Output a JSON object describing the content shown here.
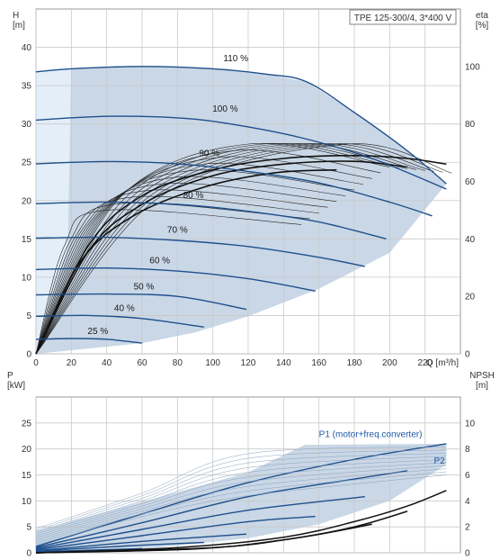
{
  "chart_data": [
    {
      "type": "line",
      "title": "TPE 125-300/4, 3*400 V",
      "xlabel": "Q [m³/h]",
      "ylabel": "H\n[m]",
      "y2label": "eta\n[%]",
      "xlim": [
        0,
        240
      ],
      "ylim": [
        0,
        45
      ],
      "y2lim": [
        0,
        120
      ],
      "xticks": [
        0,
        20,
        40,
        60,
        80,
        100,
        120,
        140,
        160,
        180,
        200,
        220
      ],
      "yticks": [
        0,
        5,
        10,
        15,
        20,
        25,
        30,
        35,
        40
      ],
      "y2ticks": [
        0,
        20,
        40,
        60,
        80,
        100
      ],
      "grid": true,
      "colors": {
        "curve": "#1f4f8c",
        "envelope": "#c9d7e6",
        "light_region": "#e3eef8",
        "efficiency": "#111111"
      },
      "series": [
        {
          "name": "110 %",
          "x": [
            0,
            20,
            60,
            100,
            130,
            153,
            180,
            210,
            232
          ],
          "values": [
            36.8,
            37.2,
            37.5,
            37.2,
            36.5,
            35.5,
            31.5,
            26.5,
            22.2
          ]
        },
        {
          "name": "100 %",
          "x": [
            0,
            40,
            80,
            110,
            150,
            190,
            232
          ],
          "values": [
            30.5,
            31.0,
            30.8,
            30.0,
            28.2,
            25.5,
            21.5
          ]
        },
        {
          "name": "90 %",
          "x": [
            0,
            40,
            80,
            120,
            160,
            200,
            224
          ],
          "values": [
            24.8,
            25.1,
            24.8,
            23.8,
            22.3,
            19.8,
            18.0
          ]
        },
        {
          "name": "80 %",
          "x": [
            0,
            40,
            80,
            120,
            160,
            198
          ],
          "values": [
            19.6,
            19.8,
            19.5,
            18.6,
            17.2,
            15.0
          ]
        },
        {
          "name": "70 %",
          "x": [
            0,
            40,
            80,
            120,
            160,
            186
          ],
          "values": [
            15.1,
            15.2,
            14.8,
            14.0,
            12.6,
            11.4
          ]
        },
        {
          "name": "60 %",
          "x": [
            0,
            40,
            80,
            120,
            158
          ],
          "values": [
            11.0,
            11.2,
            10.8,
            9.8,
            8.2
          ]
        },
        {
          "name": "50 %",
          "x": [
            0,
            40,
            80,
            119
          ],
          "values": [
            7.7,
            7.8,
            7.5,
            5.8
          ]
        },
        {
          "name": "40 %",
          "x": [
            0,
            30,
            60,
            95
          ],
          "values": [
            4.9,
            5.0,
            4.6,
            3.5
          ]
        },
        {
          "name": "25 %",
          "x": [
            0,
            20,
            40,
            60
          ],
          "values": [
            1.9,
            2.0,
            1.9,
            1.4
          ]
        }
      ],
      "labels": [
        {
          "text": "110 %",
          "x": 113,
          "y": 38.2
        },
        {
          "text": "100 %",
          "x": 107,
          "y": 31.6
        },
        {
          "text": "90 %",
          "x": 98,
          "y": 25.8
        },
        {
          "text": "80 %",
          "x": 89,
          "y": 20.3
        },
        {
          "text": "70 %",
          "x": 80,
          "y": 15.8
        },
        {
          "text": "60 %",
          "x": 70,
          "y": 11.8
        },
        {
          "text": "50 %",
          "x": 61,
          "y": 8.4
        },
        {
          "text": "40 %",
          "x": 50,
          "y": 5.6
        },
        {
          "text": "25 %",
          "x": 35,
          "y": 2.6
        }
      ]
    },
    {
      "type": "line",
      "xlabel": "",
      "ylabel": "P\n[kW]",
      "y2label": "NPSH\n[m]",
      "ylim": [
        0,
        30
      ],
      "y2lim": [
        0,
        12
      ],
      "yticks": [
        0,
        5,
        10,
        15,
        20,
        25
      ],
      "y2ticks": [
        0,
        2,
        4,
        6,
        8,
        10
      ],
      "grid": true,
      "series": [
        {
          "name": "P1 (motor+freq.converter)",
          "x": [
            0,
            60,
            120,
            152,
            185,
            232
          ],
          "values": [
            4.0,
            9.5,
            15.5,
            21.0,
            21.0,
            21.0
          ]
        },
        {
          "name": "P2",
          "x": [
            0,
            60,
            120,
            160,
            200,
            232
          ],
          "values": [
            0.5,
            5.5,
            11.0,
            15.0,
            18.5,
            20.6
          ]
        }
      ],
      "labels": [
        {
          "text": "P1 (motor+freq.converter)",
          "x": 160,
          "y": 22.3
        },
        {
          "text": "P2",
          "x": 225,
          "y": 17.2
        }
      ]
    }
  ]
}
